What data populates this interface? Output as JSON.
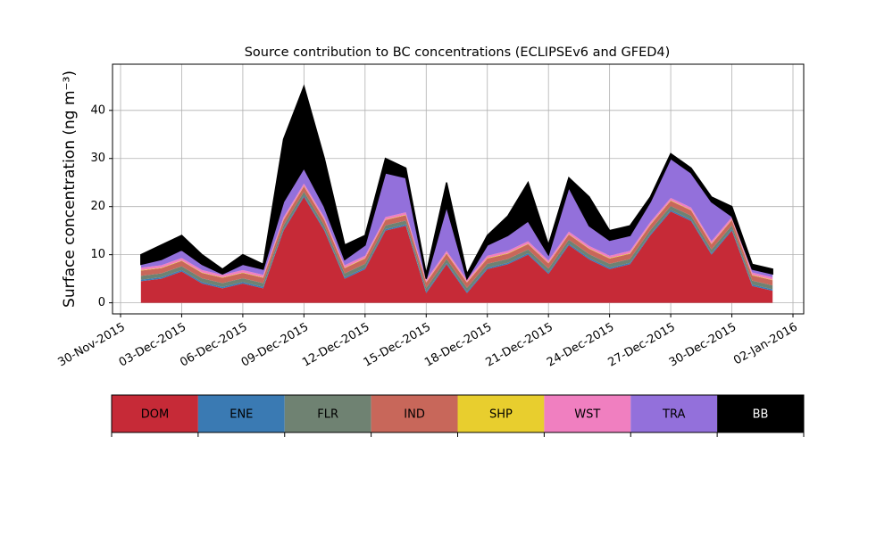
{
  "chart_data": {
    "type": "stacked_area",
    "title": "Source contribution to BC concentrations (ECLIPSEv6 and GFED4)",
    "y_label": "Surface concentration (ng m⁻³)",
    "x": [
      "01-Dec-2015",
      "02-Dec-2015",
      "03-Dec-2015",
      "04-Dec-2015",
      "05-Dec-2015",
      "06-Dec-2015",
      "07-Dec-2015",
      "08-Dec-2015",
      "09-Dec-2015",
      "10-Dec-2015",
      "11-Dec-2015",
      "12-Dec-2015",
      "13-Dec-2015",
      "14-Dec-2015",
      "15-Dec-2015",
      "16-Dec-2015",
      "17-Dec-2015",
      "18-Dec-2015",
      "19-Dec-2015",
      "20-Dec-2015",
      "21-Dec-2015",
      "22-Dec-2015",
      "23-Dec-2015",
      "24-Dec-2015",
      "25-Dec-2015",
      "26-Dec-2015",
      "27-Dec-2015",
      "28-Dec-2015",
      "29-Dec-2015",
      "30-Dec-2015",
      "31-Dec-2015",
      "01-Jan-2016"
    ],
    "series": [
      {
        "name": "DOM",
        "color": "#c62a37",
        "values": [
          4.5,
          5,
          6.5,
          4,
          3,
          4,
          3,
          15,
          22,
          15,
          5,
          7,
          15,
          16,
          2,
          8,
          2,
          7,
          8,
          10,
          6,
          12,
          9,
          7,
          8,
          14,
          19,
          17,
          10,
          15,
          3.5,
          2.5
        ]
      },
      {
        "name": "ENE",
        "color": "#3a7ab3",
        "values": [
          0.3,
          0.3,
          0.3,
          0.3,
          0.3,
          0.3,
          0.3,
          0.3,
          0.3,
          0.3,
          0.3,
          0.3,
          0.3,
          0.3,
          0.3,
          0.3,
          0.3,
          0.3,
          0.3,
          0.3,
          0.3,
          0.3,
          0.3,
          0.3,
          0.3,
          0.3,
          0.3,
          0.3,
          0.3,
          0.3,
          0.3,
          0.3
        ]
      },
      {
        "name": "FLR",
        "color": "#6f8272",
        "values": [
          0.8,
          0.8,
          0.8,
          0.8,
          0.8,
          0.8,
          0.8,
          0.8,
          0.8,
          0.8,
          0.8,
          0.8,
          0.8,
          0.8,
          0.8,
          0.8,
          0.8,
          0.8,
          0.8,
          0.8,
          0.8,
          0.8,
          0.8,
          0.8,
          0.8,
          0.8,
          0.8,
          0.8,
          0.8,
          0.8,
          0.8,
          0.8
        ]
      },
      {
        "name": "IND",
        "color": "#c8675a",
        "values": [
          1.1,
          1.1,
          1.1,
          1.1,
          1.1,
          1.1,
          1.1,
          1.1,
          1.1,
          1.1,
          1.1,
          1.1,
          1.1,
          1.1,
          1.1,
          1.1,
          1.1,
          1.1,
          1.1,
          1.1,
          1.1,
          1.1,
          1.1,
          1.1,
          1.1,
          1.1,
          1.1,
          1.1,
          1.1,
          1.1,
          1.1,
          1.1
        ]
      },
      {
        "name": "SHP",
        "color": "#e8ce2e",
        "values": [
          0.1,
          0.1,
          0.1,
          0.1,
          0.1,
          0.1,
          0.1,
          0.1,
          0.1,
          0.1,
          0.1,
          0.1,
          0.1,
          0.1,
          0.1,
          0.1,
          0.1,
          0.1,
          0.1,
          0.1,
          0.1,
          0.1,
          0.1,
          0.1,
          0.1,
          0.1,
          0.1,
          0.1,
          0.1,
          0.1,
          0.1,
          0.1
        ]
      },
      {
        "name": "WST",
        "color": "#f07fc0",
        "values": [
          0.5,
          0.5,
          0.5,
          0.5,
          0.5,
          0.5,
          0.5,
          0.5,
          0.5,
          0.5,
          0.5,
          0.5,
          0.5,
          0.5,
          0.5,
          0.5,
          0.5,
          0.5,
          0.5,
          0.5,
          0.5,
          0.5,
          0.5,
          0.5,
          0.5,
          0.5,
          0.5,
          0.5,
          0.5,
          0.5,
          0.5,
          0.5
        ]
      },
      {
        "name": "TRA",
        "color": "#9370db",
        "values": [
          0.7,
          1.2,
          1.7,
          1.2,
          0.2,
          1.2,
          1.2,
          3.2,
          3.2,
          2.2,
          1.2,
          2.2,
          9.2,
          7.2,
          0.2,
          9.2,
          0.2,
          2.2,
          3.2,
          4.2,
          1.2,
          9.2,
          4.2,
          3.2,
          3.2,
          4.2,
          8.2,
          7.2,
          8.2,
          0.2,
          0.7,
          0.7
        ]
      },
      {
        "name": "BB",
        "color": "#000000",
        "values": [
          2,
          3,
          3,
          2,
          1,
          2,
          1,
          13,
          17,
          10,
          3,
          2,
          3,
          2,
          1,
          5,
          1,
          2,
          4,
          8,
          2,
          2,
          6,
          2,
          2,
          1,
          1,
          1,
          1,
          2,
          1,
          1
        ]
      }
    ],
    "xlim": [
      "30-Nov-2015",
      "02-Jan-2016"
    ],
    "xticks": [
      "30-Nov-2015",
      "03-Dec-2015",
      "06-Dec-2015",
      "09-Dec-2015",
      "12-Dec-2015",
      "15-Dec-2015",
      "18-Dec-2015",
      "21-Dec-2015",
      "24-Dec-2015",
      "27-Dec-2015",
      "30-Dec-2015",
      "02-Jan-2016"
    ],
    "ylim": [
      -2.3,
      49.6
    ],
    "yticks": [
      0,
      10,
      20,
      30,
      40
    ],
    "grid": true
  }
}
